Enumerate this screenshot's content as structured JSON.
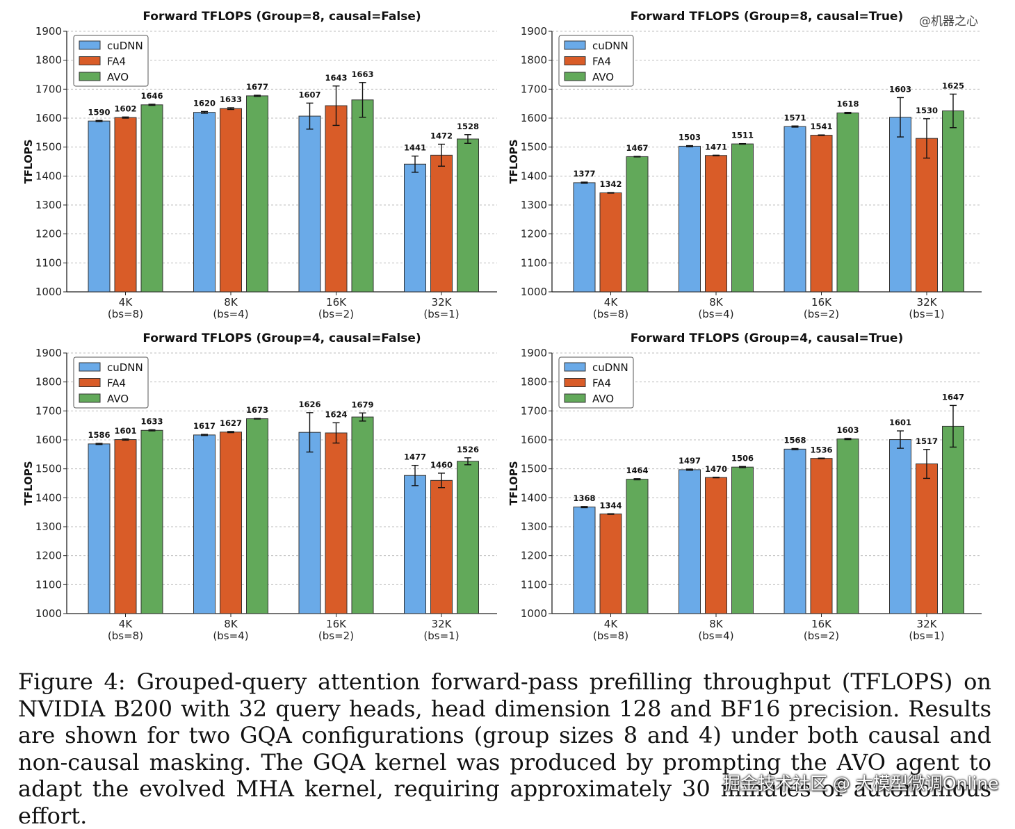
{
  "caption": "Figure 4: Grouped-query attention forward-pass prefilling throughput (TFLOPS) on NVIDIA B200 with 32 query heads, head dimension 128 and BF16 precision. Results are shown for two GQA configurations (group sizes 8 and 4) under both causal and non-causal masking. The GQA kernel was produced by prompting the AVO agent to adapt the evolved MHA kernel, requiring approximately 30 minutes of autonomous effort.",
  "watermarks": {
    "top": "@机器之心",
    "bottom": "掘金技术社区 @ 大模型微调Online"
  },
  "colors": {
    "cuDNN": "#6aaae8",
    "FA4": "#d95c28",
    "AVO": "#62a95a"
  },
  "chart_data": [
    {
      "type": "bar",
      "title": "Forward TFLOPS (Group=8, causal=False)",
      "ylabel": "TFLOPS",
      "ylim": [
        1000,
        1900
      ],
      "yticks": [
        "1000",
        "1100",
        "1200",
        "1300",
        "1400",
        "1500",
        "1600",
        "1700",
        "1800",
        "1900"
      ],
      "categories": [
        "4K",
        "8K",
        "16K",
        "32K"
      ],
      "subcategories": [
        "(bs=8)",
        "(bs=4)",
        "(bs=2)",
        "(bs=1)"
      ],
      "grid": true,
      "legend": "top-left",
      "series": [
        {
          "name": "cuDNN",
          "values": [
            1590,
            1620,
            1607,
            1441
          ],
          "labels": [
            "1590",
            "1620",
            "1607",
            "1441"
          ],
          "errors": [
            2,
            3,
            45,
            28
          ]
        },
        {
          "name": "FA4",
          "values": [
            1602,
            1633,
            1643,
            1472
          ],
          "labels": [
            "1602",
            "1633",
            "1643",
            "1472"
          ],
          "errors": [
            2,
            3,
            68,
            38
          ]
        },
        {
          "name": "AVO",
          "values": [
            1646,
            1677,
            1663,
            1528
          ],
          "labels": [
            "1646",
            "1677",
            "1663",
            "1528"
          ],
          "errors": [
            2,
            2,
            60,
            15
          ]
        }
      ]
    },
    {
      "type": "bar",
      "title": "Forward TFLOPS (Group=8, causal=True)",
      "ylabel": "TFLOPS",
      "ylim": [
        1000,
        1900
      ],
      "yticks": [
        "1000",
        "1100",
        "1200",
        "1300",
        "1400",
        "1500",
        "1600",
        "1700",
        "1800",
        "1900"
      ],
      "categories": [
        "4K",
        "8K",
        "16K",
        "32K"
      ],
      "subcategories": [
        "(bs=8)",
        "(bs=4)",
        "(bs=2)",
        "(bs=1)"
      ],
      "grid": true,
      "legend": "top-left",
      "series": [
        {
          "name": "cuDNN",
          "values": [
            1377,
            1503,
            1571,
            1603
          ],
          "labels": [
            "1377",
            "1503",
            "1571",
            "1603"
          ],
          "errors": [
            2,
            2,
            2,
            68
          ]
        },
        {
          "name": "FA4",
          "values": [
            1342,
            1471,
            1541,
            1530
          ],
          "labels": [
            "1342",
            "1471",
            "1541",
            "1530"
          ],
          "errors": [
            1,
            1,
            1,
            68
          ]
        },
        {
          "name": "AVO",
          "values": [
            1467,
            1511,
            1618,
            1625
          ],
          "labels": [
            "1467",
            "1511",
            "1618",
            "1625"
          ],
          "errors": [
            1,
            1,
            2,
            58
          ]
        }
      ]
    },
    {
      "type": "bar",
      "title": "Forward TFLOPS (Group=4, causal=False)",
      "ylabel": "TFLOPS",
      "ylim": [
        1000,
        1900
      ],
      "yticks": [
        "1000",
        "1100",
        "1200",
        "1300",
        "1400",
        "1500",
        "1600",
        "1700",
        "1800",
        "1900"
      ],
      "categories": [
        "4K",
        "8K",
        "16K",
        "32K"
      ],
      "subcategories": [
        "(bs=8)",
        "(bs=4)",
        "(bs=2)",
        "(bs=1)"
      ],
      "grid": true,
      "legend": "top-left",
      "series": [
        {
          "name": "cuDNN",
          "values": [
            1586,
            1617,
            1626,
            1477
          ],
          "labels": [
            "1586",
            "1617",
            "1626",
            "1477"
          ],
          "errors": [
            2,
            2,
            68,
            35
          ]
        },
        {
          "name": "FA4",
          "values": [
            1601,
            1627,
            1624,
            1460
          ],
          "labels": [
            "1601",
            "1627",
            "1624",
            "1460"
          ],
          "errors": [
            2,
            2,
            35,
            25
          ]
        },
        {
          "name": "AVO",
          "values": [
            1633,
            1673,
            1679,
            1526
          ],
          "labels": [
            "1633",
            "1673",
            "1679",
            "1526"
          ],
          "errors": [
            2,
            1,
            14,
            12
          ]
        }
      ]
    },
    {
      "type": "bar",
      "title": "Forward TFLOPS (Group=4, causal=True)",
      "ylabel": "TFLOPS",
      "ylim": [
        1000,
        1900
      ],
      "yticks": [
        "1000",
        "1100",
        "1200",
        "1300",
        "1400",
        "1500",
        "1600",
        "1700",
        "1800",
        "1900"
      ],
      "categories": [
        "4K",
        "8K",
        "16K",
        "32K"
      ],
      "subcategories": [
        "(bs=8)",
        "(bs=4)",
        "(bs=2)",
        "(bs=1)"
      ],
      "grid": true,
      "legend": "top-left",
      "series": [
        {
          "name": "cuDNN",
          "values": [
            1368,
            1497,
            1568,
            1601
          ],
          "labels": [
            "1368",
            "1497",
            "1568",
            "1601"
          ],
          "errors": [
            2,
            2,
            2,
            30
          ]
        },
        {
          "name": "FA4",
          "values": [
            1344,
            1470,
            1536,
            1517
          ],
          "labels": [
            "1344",
            "1470",
            "1536",
            "1517"
          ],
          "errors": [
            1,
            1,
            1,
            50
          ]
        },
        {
          "name": "AVO",
          "values": [
            1464,
            1506,
            1603,
            1647
          ],
          "labels": [
            "1464",
            "1506",
            "1603",
            "1647"
          ],
          "errors": [
            2,
            2,
            2,
            72
          ]
        }
      ]
    }
  ]
}
